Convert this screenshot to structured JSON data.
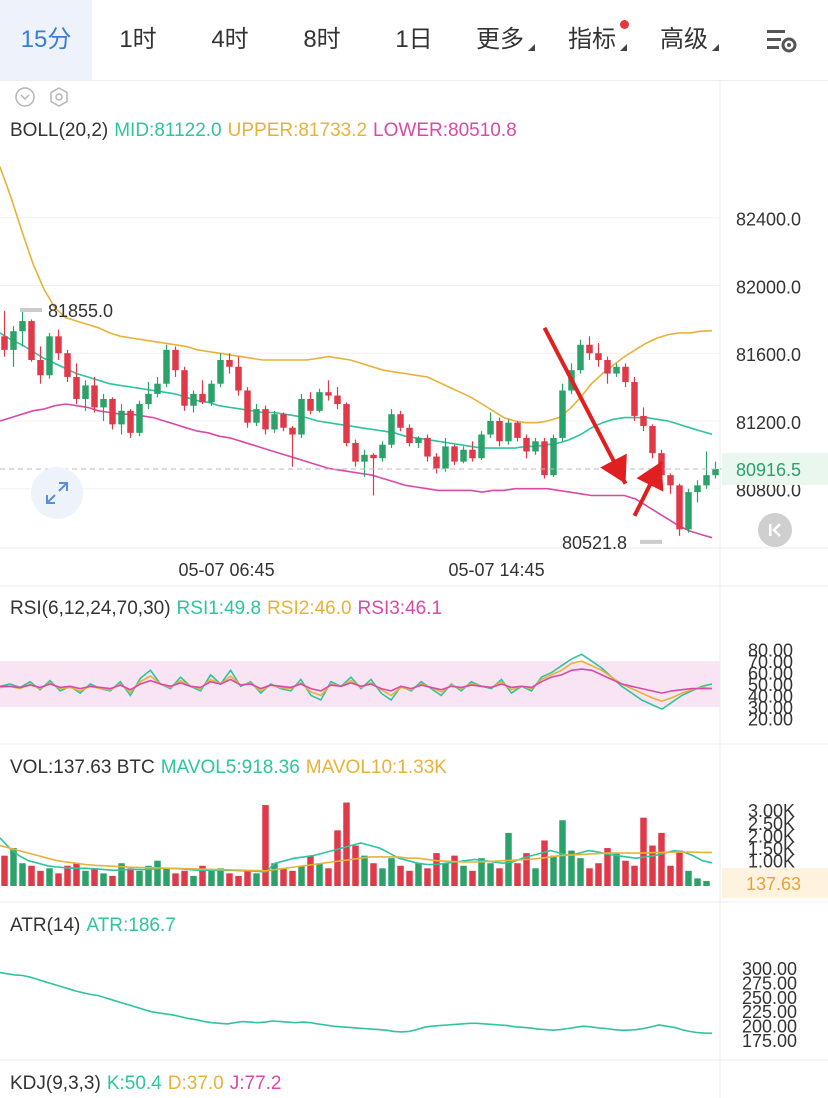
{
  "tabs": [
    {
      "label": "15分",
      "active": true
    },
    {
      "label": "1时"
    },
    {
      "label": "4时"
    },
    {
      "label": "8时"
    },
    {
      "label": "1日"
    },
    {
      "label": "更多",
      "dropdown": true
    },
    {
      "label": "指标",
      "dropdown": true,
      "badge": true
    },
    {
      "label": "高级",
      "dropdown": true
    }
  ],
  "colors": {
    "up": "#2aa26a",
    "down": "#e0394a",
    "mid": "#2ec4a0",
    "upper": "#e8b23a",
    "lower": "#d94aa8",
    "accent": "#3a7bd5",
    "arrow": "#e02020"
  },
  "icons": {
    "settings": "chart-settings-icon",
    "collapse": "chevron-circle-icon",
    "gear": "hex-gear-icon",
    "expand": "expand-arrows-icon",
    "back": "skip-back-icon"
  },
  "boll": {
    "name": "BOLL(20,2)",
    "mid": "MID:81122.0",
    "upper": "UPPER:81733.2",
    "lower": "LOWER:80510.8"
  },
  "rsi": {
    "name": "RSI(6,12,24,70,30)",
    "rsi1": "RSI1:49.8",
    "rsi2": "RSI2:46.0",
    "rsi3": "RSI3:46.1"
  },
  "vol": {
    "name": "VOL:137.63 BTC",
    "mavol5": "MAVOL5:918.36",
    "mavol10": "MAVOL10:1.33K"
  },
  "atr": {
    "name": "ATR(14)",
    "atr": "ATR:186.7"
  },
  "kdj": {
    "name": "KDJ(9,3,3)",
    "k": "K:50.4",
    "d": "D:37.0",
    "j": "J:77.2"
  },
  "chart_data": {
    "type": "candlestick",
    "price_axis": {
      "ticks": [
        "82400.0",
        "82000.0",
        "81600.0",
        "81200.0",
        "80800.0"
      ],
      "ylim": [
        80450,
        82800
      ],
      "current": "80916.5",
      "current_value": 80916.5
    },
    "max_label": "81855.0",
    "max_value": 81855,
    "min_label": "80521.8",
    "min_value": 80521.8,
    "time_axis": [
      "05-07 06:45",
      "05-07 14:45"
    ],
    "time_positions": [
      26,
      56
    ],
    "candles": [
      {
        "o": 81700,
        "h": 81850,
        "l": 81580,
        "c": 81620
      },
      {
        "o": 81620,
        "h": 81760,
        "l": 81520,
        "c": 81730
      },
      {
        "o": 81730,
        "h": 81855,
        "l": 81640,
        "c": 81790
      },
      {
        "o": 81790,
        "h": 81800,
        "l": 81550,
        "c": 81560
      },
      {
        "o": 81560,
        "h": 81640,
        "l": 81420,
        "c": 81470
      },
      {
        "o": 81470,
        "h": 81720,
        "l": 81450,
        "c": 81700
      },
      {
        "o": 81700,
        "h": 81740,
        "l": 81560,
        "c": 81600
      },
      {
        "o": 81600,
        "h": 81620,
        "l": 81430,
        "c": 81460
      },
      {
        "o": 81460,
        "h": 81540,
        "l": 81300,
        "c": 81330
      },
      {
        "o": 81330,
        "h": 81440,
        "l": 81260,
        "c": 81410
      },
      {
        "o": 81410,
        "h": 81460,
        "l": 81250,
        "c": 81280
      },
      {
        "o": 81280,
        "h": 81360,
        "l": 81200,
        "c": 81330
      },
      {
        "o": 81330,
        "h": 81340,
        "l": 81150,
        "c": 81180
      },
      {
        "o": 81180,
        "h": 81300,
        "l": 81120,
        "c": 81260
      },
      {
        "o": 81260,
        "h": 81270,
        "l": 81100,
        "c": 81130
      },
      {
        "o": 81130,
        "h": 81320,
        "l": 81110,
        "c": 81300
      },
      {
        "o": 81300,
        "h": 81430,
        "l": 81270,
        "c": 81360
      },
      {
        "o": 81360,
        "h": 81460,
        "l": 81340,
        "c": 81420
      },
      {
        "o": 81420,
        "h": 81650,
        "l": 81400,
        "c": 81620
      },
      {
        "o": 81620,
        "h": 81640,
        "l": 81460,
        "c": 81500
      },
      {
        "o": 81500,
        "h": 81520,
        "l": 81260,
        "c": 81290
      },
      {
        "o": 81290,
        "h": 81380,
        "l": 81250,
        "c": 81360
      },
      {
        "o": 81360,
        "h": 81440,
        "l": 81300,
        "c": 81310
      },
      {
        "o": 81310,
        "h": 81440,
        "l": 81290,
        "c": 81420
      },
      {
        "o": 81420,
        "h": 81600,
        "l": 81400,
        "c": 81560
      },
      {
        "o": 81560,
        "h": 81600,
        "l": 81480,
        "c": 81520
      },
      {
        "o": 81520,
        "h": 81580,
        "l": 81350,
        "c": 81380
      },
      {
        "o": 81380,
        "h": 81400,
        "l": 81160,
        "c": 81190
      },
      {
        "o": 81190,
        "h": 81300,
        "l": 81170,
        "c": 81270
      },
      {
        "o": 81270,
        "h": 81290,
        "l": 81120,
        "c": 81150
      },
      {
        "o": 81150,
        "h": 81260,
        "l": 81130,
        "c": 81240
      },
      {
        "o": 81240,
        "h": 81250,
        "l": 81140,
        "c": 81160
      },
      {
        "o": 81160,
        "h": 81170,
        "l": 80930,
        "c": 81120
      },
      {
        "o": 81120,
        "h": 81360,
        "l": 81100,
        "c": 81330
      },
      {
        "o": 81330,
        "h": 81370,
        "l": 81240,
        "c": 81260
      },
      {
        "o": 81260,
        "h": 81390,
        "l": 81250,
        "c": 81370
      },
      {
        "o": 81370,
        "h": 81440,
        "l": 81320,
        "c": 81350
      },
      {
        "o": 81350,
        "h": 81400,
        "l": 81270,
        "c": 81300
      },
      {
        "o": 81300,
        "h": 81310,
        "l": 81050,
        "c": 81070
      },
      {
        "o": 81070,
        "h": 81090,
        "l": 80930,
        "c": 80960
      },
      {
        "o": 80960,
        "h": 81030,
        "l": 80870,
        "c": 81000
      },
      {
        "o": 81000,
        "h": 81010,
        "l": 80760,
        "c": 80980
      },
      {
        "o": 80980,
        "h": 81080,
        "l": 80960,
        "c": 81060
      },
      {
        "o": 81060,
        "h": 81270,
        "l": 81040,
        "c": 81240
      },
      {
        "o": 81240,
        "h": 81260,
        "l": 81140,
        "c": 81160
      },
      {
        "o": 81160,
        "h": 81180,
        "l": 81050,
        "c": 81070
      },
      {
        "o": 81070,
        "h": 81110,
        "l": 81040,
        "c": 81100
      },
      {
        "o": 81100,
        "h": 81120,
        "l": 80960,
        "c": 80990
      },
      {
        "o": 80990,
        "h": 81010,
        "l": 80890,
        "c": 80920
      },
      {
        "o": 80920,
        "h": 81100,
        "l": 80900,
        "c": 81050
      },
      {
        "o": 81050,
        "h": 81060,
        "l": 80940,
        "c": 80960
      },
      {
        "o": 80960,
        "h": 81050,
        "l": 80950,
        "c": 81030
      },
      {
        "o": 81030,
        "h": 81080,
        "l": 80960,
        "c": 80980
      },
      {
        "o": 80980,
        "h": 81140,
        "l": 80970,
        "c": 81120
      },
      {
        "o": 81120,
        "h": 81250,
        "l": 81100,
        "c": 81200
      },
      {
        "o": 81200,
        "h": 81220,
        "l": 81050,
        "c": 81080
      },
      {
        "o": 81080,
        "h": 81210,
        "l": 81060,
        "c": 81190
      },
      {
        "o": 81190,
        "h": 81200,
        "l": 81080,
        "c": 81100
      },
      {
        "o": 81100,
        "h": 81120,
        "l": 80980,
        "c": 81020
      },
      {
        "o": 81020,
        "h": 81100,
        "l": 81000,
        "c": 81080
      },
      {
        "o": 81080,
        "h": 81100,
        "l": 80860,
        "c": 80880
      },
      {
        "o": 80880,
        "h": 81120,
        "l": 80870,
        "c": 81100
      },
      {
        "o": 81100,
        "h": 81420,
        "l": 81080,
        "c": 81380
      },
      {
        "o": 81380,
        "h": 81540,
        "l": 81360,
        "c": 81500
      },
      {
        "o": 81500,
        "h": 81680,
        "l": 81480,
        "c": 81650
      },
      {
        "o": 81650,
        "h": 81700,
        "l": 81560,
        "c": 81600
      },
      {
        "o": 81600,
        "h": 81660,
        "l": 81520,
        "c": 81560
      },
      {
        "o": 81560,
        "h": 81580,
        "l": 81420,
        "c": 81480
      },
      {
        "o": 81480,
        "h": 81540,
        "l": 81460,
        "c": 81520
      },
      {
        "o": 81520,
        "h": 81540,
        "l": 81400,
        "c": 81430
      },
      {
        "o": 81430,
        "h": 81460,
        "l": 81200,
        "c": 81230
      },
      {
        "o": 81230,
        "h": 81280,
        "l": 81140,
        "c": 81170
      },
      {
        "o": 81170,
        "h": 81180,
        "l": 80980,
        "c": 81010
      },
      {
        "o": 81010,
        "h": 81030,
        "l": 80830,
        "c": 80880
      },
      {
        "o": 80880,
        "h": 80890,
        "l": 80770,
        "c": 80820
      },
      {
        "o": 80820,
        "h": 80830,
        "l": 80522,
        "c": 80560
      },
      {
        "o": 80560,
        "h": 80800,
        "l": 80540,
        "c": 80780
      },
      {
        "o": 80780,
        "h": 80850,
        "l": 80720,
        "c": 80820
      },
      {
        "o": 80820,
        "h": 81020,
        "l": 80800,
        "c": 80880
      },
      {
        "o": 80880,
        "h": 80960,
        "l": 80860,
        "c": 80917
      }
    ],
    "upper_band": [
      82700,
      82520,
      82320,
      82130,
      81980,
      81870,
      81810,
      81790,
      81770,
      81750,
      81720,
      81700,
      81690,
      81680,
      81670,
      81660,
      81650,
      81640,
      81620,
      81610,
      81600,
      81590,
      81580,
      81570,
      81560,
      81560,
      81560,
      81560,
      81560,
      81570,
      81580,
      81570,
      81560,
      81540,
      81520,
      81500,
      81490,
      81480,
      81470,
      81460,
      81430,
      81400,
      81370,
      81340,
      81300,
      81260,
      81220,
      81200,
      81190,
      81190,
      81200,
      81220,
      81270,
      81340,
      81420,
      81480,
      81530,
      81580,
      81620,
      81660,
      81690,
      81710,
      81720,
      81720,
      81730,
      81733
    ],
    "mid_band": [
      81720,
      81680,
      81650,
      81610,
      81570,
      81540,
      81510,
      81480,
      81460,
      81440,
      81420,
      81410,
      81400,
      81390,
      81380,
      81370,
      81360,
      81340,
      81320,
      81310,
      81290,
      81280,
      81270,
      81260,
      81250,
      81250,
      81240,
      81230,
      81220,
      81200,
      81190,
      81180,
      81170,
      81160,
      81150,
      81140,
      81130,
      81110,
      81100,
      81090,
      81080,
      81070,
      81060,
      81050,
      81040,
      81040,
      81040,
      81040,
      81050,
      81050,
      81060,
      81070,
      81090,
      81120,
      81160,
      81190,
      81210,
      81220,
      81220,
      81220,
      81210,
      81200,
      81180,
      81160,
      81140,
      81122
    ],
    "lower_band": [
      81200,
      81220,
      81240,
      81260,
      81270,
      81290,
      81300,
      81290,
      81280,
      81260,
      81250,
      81240,
      81240,
      81230,
      81220,
      81200,
      81180,
      81160,
      81140,
      81130,
      81110,
      81100,
      81080,
      81060,
      81040,
      81020,
      81000,
      80980,
      80960,
      80940,
      80920,
      80910,
      80900,
      80890,
      80880,
      80860,
      80840,
      80820,
      80810,
      80800,
      80790,
      80790,
      80790,
      80790,
      80780,
      80790,
      80790,
      80800,
      80800,
      80800,
      80800,
      80790,
      80780,
      80770,
      80760,
      80760,
      80760,
      80760,
      80740,
      80700,
      80660,
      80620,
      80580,
      80550,
      80530,
      80511
    ],
    "rsi_axis": [
      "80.00",
      "70.00",
      "60.00",
      "50.00",
      "40.00",
      "30.00",
      "20.00"
    ],
    "rsi1": [
      48,
      50,
      47,
      52,
      45,
      53,
      44,
      48,
      42,
      50,
      46,
      44,
      52,
      40,
      55,
      62,
      50,
      46,
      56,
      48,
      44,
      58,
      50,
      62,
      48,
      52,
      42,
      50,
      46,
      44,
      54,
      40,
      36,
      52,
      48,
      56,
      46,
      54,
      42,
      36,
      48,
      44,
      52,
      46,
      40,
      50,
      44,
      52,
      48,
      46,
      54,
      42,
      48,
      44,
      56,
      60,
      66,
      72,
      76,
      70,
      64,
      56,
      48,
      42,
      36,
      32,
      28,
      34,
      40,
      44,
      48,
      50
    ],
    "rsi2": [
      47,
      48,
      46,
      50,
      46,
      51,
      46,
      47,
      44,
      48,
      46,
      45,
      50,
      43,
      52,
      57,
      50,
      47,
      53,
      48,
      46,
      54,
      50,
      57,
      49,
      51,
      44,
      49,
      47,
      46,
      51,
      43,
      40,
      50,
      48,
      53,
      47,
      51,
      45,
      40,
      47,
      45,
      50,
      47,
      43,
      49,
      46,
      50,
      48,
      47,
      52,
      45,
      48,
      46,
      54,
      58,
      62,
      68,
      70,
      66,
      62,
      56,
      50,
      46,
      42,
      38,
      35,
      38,
      42,
      45,
      47,
      46
    ],
    "rsi3": [
      48,
      48,
      47,
      49,
      47,
      50,
      47,
      48,
      46,
      48,
      47,
      46,
      49,
      45,
      50,
      53,
      50,
      48,
      51,
      48,
      47,
      52,
      50,
      54,
      49,
      50,
      46,
      49,
      48,
      47,
      50,
      46,
      44,
      49,
      48,
      51,
      48,
      50,
      46,
      44,
      48,
      46,
      49,
      47,
      45,
      48,
      47,
      49,
      48,
      47,
      50,
      47,
      48,
      47,
      52,
      56,
      58,
      62,
      63,
      62,
      58,
      54,
      50,
      48,
      46,
      44,
      42,
      44,
      45,
      46,
      46,
      46
    ],
    "rsi_band": [
      30,
      70
    ],
    "vol_axis": [
      "3.00K",
      "2.50K",
      "2.00K",
      "1.50K",
      "1.00K"
    ],
    "vol_current": "137.63",
    "volume": [
      1200,
      1500,
      900,
      800,
      600,
      700,
      500,
      800,
      900,
      600,
      700,
      500,
      400,
      900,
      700,
      600,
      800,
      1000,
      700,
      500,
      600,
      400,
      800,
      600,
      700,
      500,
      400,
      600,
      500,
      3200,
      900,
      700,
      600,
      800,
      1200,
      900,
      700,
      2200,
      3300,
      1600,
      1200,
      900,
      700,
      1100,
      800,
      600,
      900,
      700,
      1300,
      900,
      1200,
      800,
      600,
      1100,
      900,
      700,
      2100,
      900,
      1300,
      700,
      1800,
      1200,
      2600,
      1400,
      1100,
      700,
      900,
      1500,
      1300,
      1000,
      800,
      2700,
      1600,
      2100,
      800,
      1400,
      600,
      300,
      200
    ],
    "mavol5": [
      1900,
      1500,
      1200,
      1000,
      900,
      800,
      750,
      720,
      700,
      700,
      680,
      650,
      620,
      640,
      660,
      650,
      670,
      700,
      700,
      680,
      650,
      620,
      620,
      620,
      630,
      610,
      600,
      580,
      560,
      900,
      1000,
      1100,
      1150,
      1200,
      1300,
      1400,
      1500,
      1600,
      1700,
      1600,
      1500,
      1300,
      1100,
      1000,
      900,
      850,
      850,
      900,
      950,
      1000,
      1050,
      1000,
      950,
      900,
      950,
      1100,
      1200,
      1300,
      1400,
      1300,
      1200,
      1300,
      1400,
      1350,
      1250,
      1200,
      1150,
      1100,
      1150,
      1200,
      1300,
      1400,
      1350,
      1200,
      1000,
      918
    ],
    "mavol10": [
      1600,
      1500,
      1400,
      1300,
      1200,
      1100,
      1000,
      950,
      900,
      850,
      820,
      800,
      780,
      760,
      740,
      730,
      720,
      710,
      700,
      690,
      680,
      670,
      660,
      650,
      640,
      630,
      620,
      610,
      600,
      650,
      700,
      750,
      800,
      850,
      900,
      950,
      1000,
      1050,
      1100,
      1150,
      1150,
      1150,
      1150,
      1100,
      1100,
      1050,
      1000,
      980,
      960,
      950,
      950,
      960,
      980,
      1000,
      1020,
      1040,
      1060,
      1100,
      1150,
      1200,
      1220,
      1240,
      1260,
      1280,
      1300,
      1300,
      1300,
      1300,
      1310,
      1320,
      1330,
      1340,
      1340,
      1340,
      1330,
      1330
    ],
    "atr_axis": [
      "300.00",
      "275.00",
      "250.00",
      "225.00",
      "200.00",
      "175.00"
    ],
    "atr_values": [
      292,
      290,
      288,
      287,
      284,
      280,
      276,
      272,
      268,
      264,
      260,
      257,
      254,
      252,
      248,
      244,
      240,
      236,
      232,
      228,
      224,
      222,
      220,
      218,
      215,
      212,
      210,
      207,
      205,
      204,
      203,
      205,
      207,
      206,
      205,
      206,
      208,
      207,
      206,
      205,
      206,
      205,
      203,
      201,
      199,
      198,
      197,
      196,
      195,
      194,
      193,
      192,
      190,
      189,
      190,
      193,
      197,
      199,
      200,
      201,
      202,
      203,
      204,
      204,
      203,
      202,
      201,
      200,
      198,
      197,
      196,
      194,
      193,
      192,
      193,
      195,
      197,
      199,
      198,
      196,
      195,
      193,
      192,
      192,
      193,
      195,
      198,
      201,
      199,
      197,
      193,
      190,
      188,
      187,
      186.7
    ],
    "arrows": [
      {
        "from": {
          "i": 60,
          "v": 81750
        },
        "to": {
          "i": 69,
          "v": 80830
        }
      },
      {
        "from": {
          "i": 70,
          "v": 80640
        },
        "to": {
          "i": 73,
          "v": 80960
        }
      }
    ]
  }
}
